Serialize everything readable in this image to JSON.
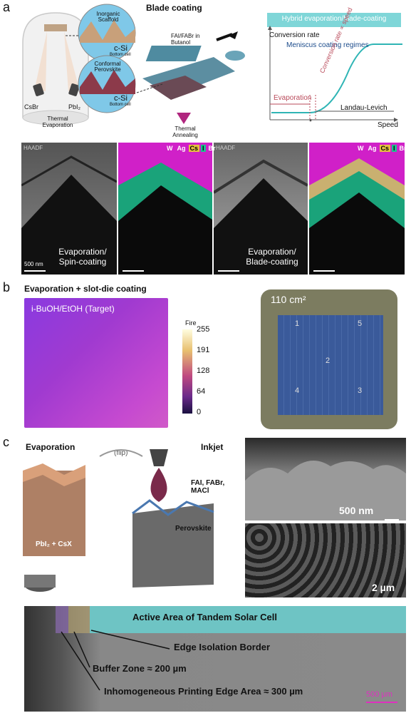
{
  "panel_a": {
    "label": "a",
    "blade_title": "Blade coating",
    "dome_caption": "Thermal Evaporation",
    "source_left": "CsBr",
    "source_right": "PbI₂",
    "circle1_title": "Inorganic Scaffold",
    "circle1_mat": "c-Si",
    "circle1_sub": "Bottom cell",
    "circle2_title": "Conformal Perovskite",
    "circle2_mat": "c-Si",
    "circle2_sub": "Bottom cell",
    "ink_label": "FAI/FABr in Butanol",
    "anneal_label": "Thermal Annealing",
    "plot": {
      "banner": "Hybrid evaporation/blade-coating",
      "ylabel": "Conversion rate",
      "regime": "Meniscus coating regimes",
      "evap": "Evaporation",
      "rate": "Conversion rate ∝ speed",
      "ll": "Landau-Levich",
      "xlabel": "Speed",
      "star": "*"
    },
    "em": {
      "haadf1": "HAADF",
      "haadf2": "HAADF",
      "caption1": "Evaporation/ Spin-coating",
      "caption2": "Evaporation/ Blade-coating",
      "scalebar": "500 nm",
      "legend": [
        "W",
        "Ag",
        "Cs",
        "I",
        "Br"
      ]
    }
  },
  "panel_b": {
    "label": "b",
    "title": "Evaporation + slot-die coating",
    "map_label": "i-BuOH/EtOH (Target)",
    "cbar_title": "Fire",
    "cbar_ticks": [
      "255",
      "191",
      "128",
      "64",
      "0"
    ],
    "area": "110 cm²",
    "cells": [
      "1",
      "5",
      "2",
      "4",
      "3"
    ]
  },
  "panel_c": {
    "label": "c",
    "evap_title": "Evaporation",
    "flip": "(flip)",
    "inkjet_title": "Inkjet",
    "ink_label": "FAI, FABr, MACl",
    "pbi_label": "PbI₂ + CsX",
    "perov_label": "Perovskite",
    "sem1_scale": "500 nm",
    "sem2_scale": "2 µm",
    "bottom": {
      "active": "Active Area of Tandem Solar Cell",
      "edge": "Edge Isolation Border",
      "buffer": "Buffer Zone ≈ 200 µm",
      "inhomo": "Inhomogeneous Printing Edge Area ≈ 300 µm",
      "scale": "500 µm"
    }
  }
}
